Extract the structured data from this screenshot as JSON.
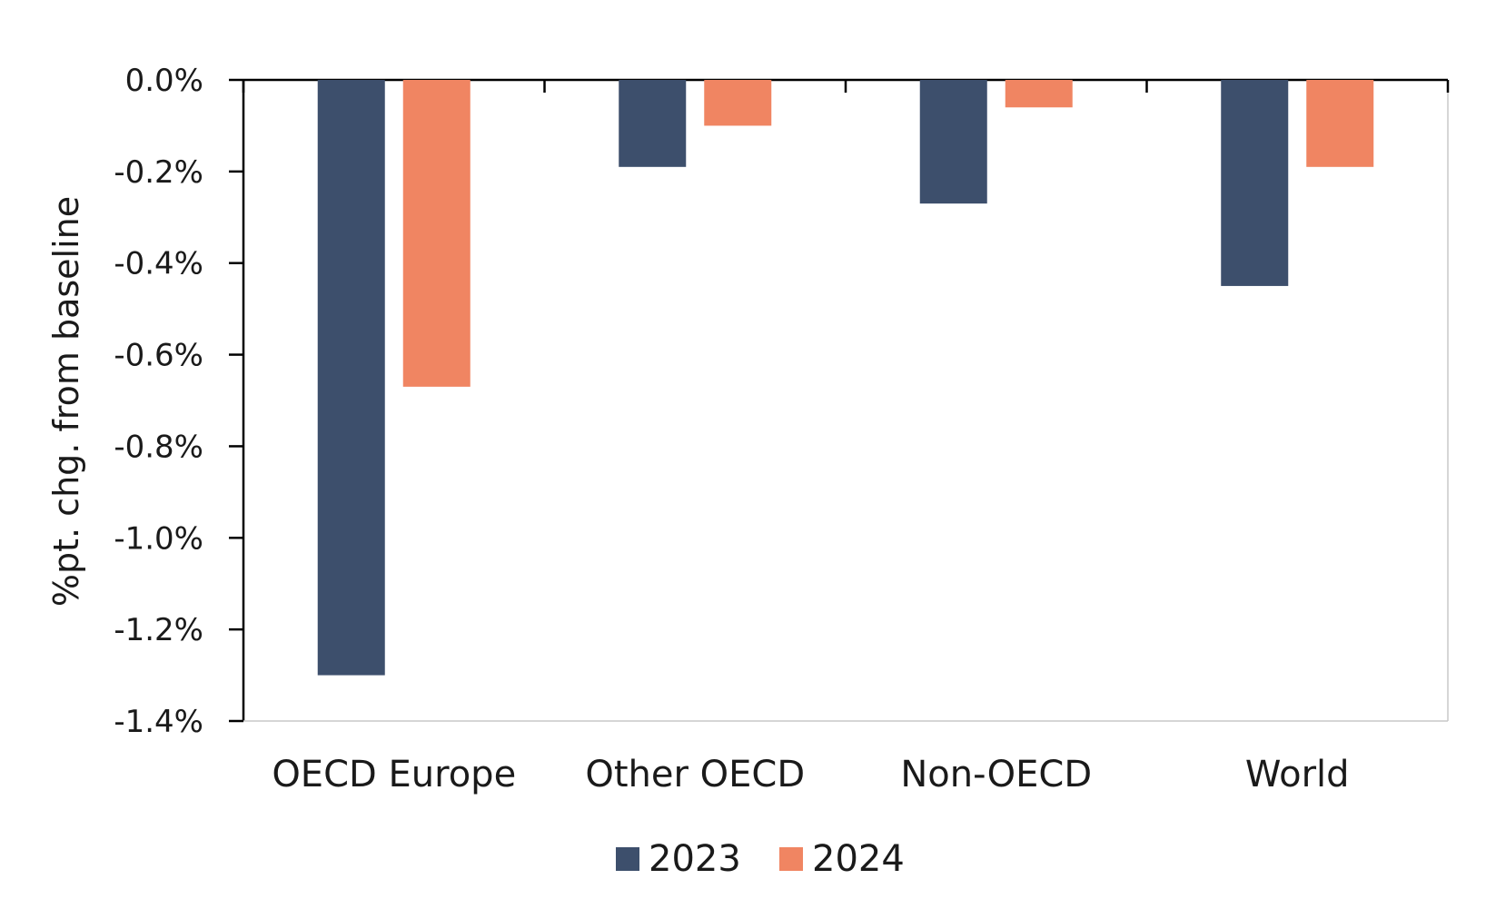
{
  "chart_data": {
    "type": "bar",
    "categories": [
      "OECD Europe",
      "Other OECD",
      "Non-OECD",
      "World"
    ],
    "series": [
      {
        "name": "2023",
        "color": "#3d4f6c",
        "values": [
          -1.3,
          -0.19,
          -0.27,
          -0.45
        ]
      },
      {
        "name": "2024",
        "color": "#f08562",
        "values": [
          -0.67,
          -0.1,
          -0.06,
          -0.19
        ]
      }
    ],
    "title": "",
    "xlabel": "",
    "ylabel": "%pt. chg. from baseline",
    "ylim": [
      -1.4,
      0.0
    ],
    "yticks": [
      0.0,
      -0.2,
      -0.4,
      -0.6,
      -0.8,
      -1.0,
      -1.2,
      -1.4
    ],
    "ytick_labels": [
      "0.0%",
      "-0.2%",
      "-0.4%",
      "-0.6%",
      "-0.8%",
      "-1.0%",
      "-1.2%",
      "-1.4%"
    ],
    "grid": false,
    "legend_position": "bottom-center",
    "x_axis_position": "top"
  }
}
